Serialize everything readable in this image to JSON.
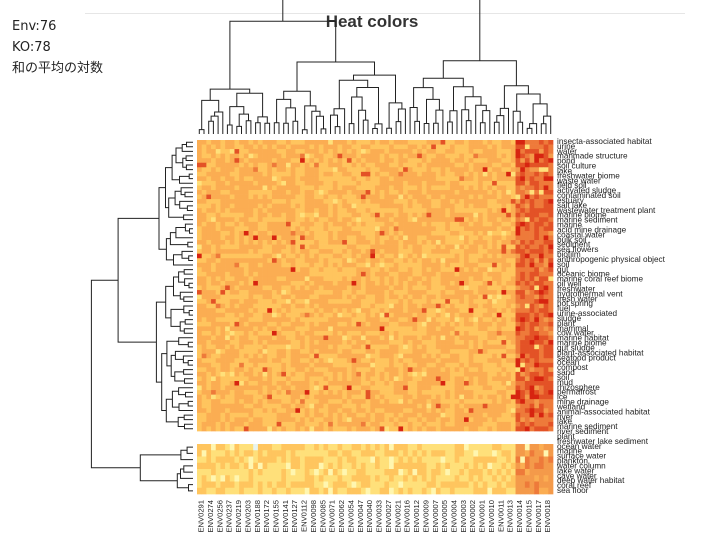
{
  "slide_notes": [
    "Env:76",
    "KO:78",
    "和の平均の対数"
  ],
  "chart_data": {
    "type": "heatmap",
    "title": "Heat colors",
    "row_labels": [
      "insecta-associated habitat",
      "urine",
      "water",
      "manmade structure",
      "pond",
      "soil culture",
      "lake",
      "freshwater biome",
      "waste water",
      "field soil",
      "activated sludge",
      "contaminated soil",
      "estuary",
      "salt lake",
      "wastewater treatment plant",
      "marine biome",
      "marine sediment",
      "marine",
      "acid mine drainage",
      "coastal water",
      "bulk soil",
      "sediment",
      "sea flowers",
      "biofilm",
      "anthropogenic physical object",
      "soil",
      "gut",
      "oceanic biome",
      "marine coral reef biome",
      "oil well",
      "freshwater",
      "hydrothermal vent",
      "fresh water",
      "hot spring",
      "fuel",
      "urine-associated",
      "sludge",
      "plant",
      "mammal",
      "cow water",
      "marine habitat",
      "marine biome",
      "gut sludge",
      "plant-associated habitat",
      "seafood product",
      "ocean",
      "compost",
      "sand",
      "soil",
      "mud",
      "rhizosphere",
      "permafrost",
      "ice",
      "mine drainage",
      "wetland",
      "animal-associated habitat",
      "river",
      "lake",
      "marine sediment",
      "river sediment",
      "plant",
      "freshwater lake sediment",
      "ocean water",
      "marine",
      "surface water",
      "plankton",
      "water column",
      "lake water",
      "cave water",
      "deep water habitat",
      "coral reef",
      "sea floor"
    ],
    "n_rows": 72,
    "n_cols": 76,
    "row_groups": [
      64,
      8
    ],
    "col_tick_labels": [
      "ENV0291",
      "ENV0274",
      "ENV0256",
      "ENV0237",
      "ENV0219",
      "ENV0203",
      "ENV0188",
      "ENV0172",
      "ENV0155",
      "ENV0141",
      "ENV0127",
      "ENV0112",
      "ENV0098",
      "ENV0085",
      "ENV0071",
      "ENV0062",
      "ENV0054",
      "ENV0047",
      "ENV0040",
      "ENV0033",
      "ENV0027",
      "ENV0021",
      "ENV0016",
      "ENV0012",
      "ENV0009",
      "ENV0007",
      "ENV0005",
      "ENV0004",
      "ENV0003",
      "ENV0002",
      "ENV0001",
      "ENV0010",
      "ENV0011",
      "ENV0013",
      "ENV0014",
      "ENV0015",
      "ENV0017",
      "ENV0018"
    ],
    "color_scale": [
      "#fff6b0",
      "#ffe07a",
      "#ffc55e",
      "#fbad52",
      "#f49a4a",
      "#ee7a3a",
      "#e35226",
      "#d72410"
    ],
    "grid": false,
    "legend": "none"
  }
}
